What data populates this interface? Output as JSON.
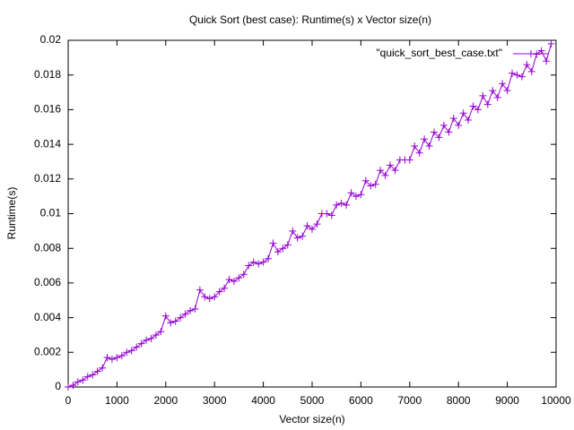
{
  "chart_data": {
    "type": "line",
    "title": "Quick Sort (best case): Runtime(s) x Vector size(n)",
    "x_label": "Vector size(n)",
    "y_label": "Runtime(s)",
    "legend_position": "top-right",
    "x": [
      0,
      100,
      200,
      300,
      400,
      500,
      600,
      700,
      800,
      900,
      1000,
      1100,
      1200,
      1300,
      1400,
      1500,
      1600,
      1700,
      1800,
      1900,
      2000,
      2100,
      2200,
      2300,
      2400,
      2500,
      2600,
      2700,
      2800,
      2900,
      3000,
      3100,
      3200,
      3300,
      3400,
      3500,
      3600,
      3700,
      3800,
      3900,
      4000,
      4100,
      4200,
      4300,
      4400,
      4500,
      4600,
      4700,
      4800,
      4900,
      5000,
      5100,
      5200,
      5300,
      5400,
      5500,
      5600,
      5700,
      5800,
      5900,
      6000,
      6100,
      6200,
      6300,
      6400,
      6500,
      6600,
      6700,
      6800,
      6900,
      7000,
      7100,
      7200,
      7300,
      7400,
      7500,
      7600,
      7700,
      7800,
      7900,
      8000,
      8100,
      8200,
      8300,
      8400,
      8500,
      8600,
      8700,
      8800,
      8900,
      9000,
      9100,
      9200,
      9300,
      9400,
      9500,
      9600,
      9700,
      9800,
      9900
    ],
    "series": [
      {
        "name": "\"quick_sort_best_case.txt\"",
        "color": "#9400d3",
        "values": [
          0,
          0.0001,
          0.0003,
          0.0004,
          0.0006,
          0.0007,
          0.0009,
          0.0011,
          0.0017,
          0.0016,
          0.0017,
          0.0018,
          0.002,
          0.0021,
          0.0023,
          0.0025,
          0.0027,
          0.0028,
          0.003,
          0.0032,
          0.0041,
          0.0037,
          0.0038,
          0.004,
          0.0042,
          0.0044,
          0.0045,
          0.0056,
          0.0052,
          0.0051,
          0.0052,
          0.0055,
          0.0057,
          0.0062,
          0.0061,
          0.0063,
          0.0065,
          0.007,
          0.0072,
          0.0071,
          0.0072,
          0.0074,
          0.0083,
          0.0078,
          0.008,
          0.0082,
          0.009,
          0.0086,
          0.0087,
          0.0093,
          0.0091,
          0.0094,
          0.01,
          0.01,
          0.0099,
          0.0105,
          0.0106,
          0.0105,
          0.0112,
          0.011,
          0.0111,
          0.0119,
          0.0116,
          0.0117,
          0.0125,
          0.0122,
          0.0128,
          0.0125,
          0.0131,
          0.0131,
          0.0131,
          0.0139,
          0.0135,
          0.0143,
          0.0139,
          0.0147,
          0.0144,
          0.0151,
          0.0147,
          0.0155,
          0.0151,
          0.0158,
          0.0154,
          0.0162,
          0.016,
          0.0168,
          0.0163,
          0.0171,
          0.0167,
          0.0175,
          0.0171,
          0.0181,
          0.018,
          0.0179,
          0.0186,
          0.0182,
          0.0192,
          0.0194,
          0.0188,
          0.0198
        ]
      }
    ],
    "xlim": [
      0,
      10000
    ],
    "xticks": [
      0,
      1000,
      2000,
      3000,
      4000,
      5000,
      6000,
      7000,
      8000,
      9000,
      10000
    ],
    "ylim": [
      0,
      0.02
    ],
    "yticks": [
      0,
      0.002,
      0.004,
      0.006,
      0.008,
      0.01,
      0.012,
      0.014,
      0.016,
      0.018,
      0.02
    ]
  }
}
